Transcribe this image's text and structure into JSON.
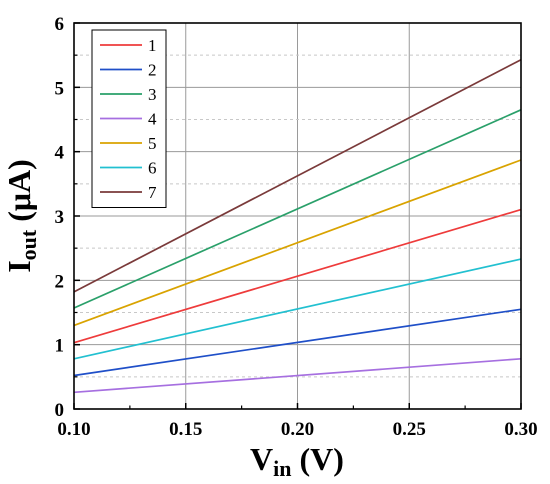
{
  "chart_data": {
    "type": "line",
    "title": "",
    "xlabel": {
      "main": "V",
      "sub": "in",
      "unit": " (V)"
    },
    "ylabel": {
      "main": "I",
      "sub": "out",
      "unit": " (μA)"
    },
    "xlim": [
      0.1,
      0.3
    ],
    "ylim": [
      0,
      6
    ],
    "xticks": [
      "0.10",
      "0.15",
      "0.20",
      "0.25",
      "0.30"
    ],
    "yticks": [
      "0",
      "1",
      "2",
      "3",
      "4",
      "5",
      "6"
    ],
    "grid": true,
    "legend_position": "top-left",
    "series": [
      {
        "name": "1",
        "color": "#ee3b3b",
        "points": [
          [
            0.1,
            1.03
          ],
          [
            0.3,
            3.1
          ]
        ]
      },
      {
        "name": "2",
        "color": "#1f4fc8",
        "points": [
          [
            0.1,
            0.52
          ],
          [
            0.3,
            1.55
          ]
        ]
      },
      {
        "name": "3",
        "color": "#2aa06a",
        "points": [
          [
            0.1,
            1.57
          ],
          [
            0.3,
            4.65
          ]
        ]
      },
      {
        "name": "4",
        "color": "#a66fe0",
        "points": [
          [
            0.1,
            0.26
          ],
          [
            0.3,
            0.78
          ]
        ]
      },
      {
        "name": "5",
        "color": "#d9a300",
        "points": [
          [
            0.1,
            1.3
          ],
          [
            0.3,
            3.87
          ]
        ]
      },
      {
        "name": "6",
        "color": "#22c0d0",
        "points": [
          [
            0.1,
            0.78
          ],
          [
            0.3,
            2.33
          ]
        ]
      },
      {
        "name": "7",
        "color": "#7a3a3a",
        "points": [
          [
            0.1,
            1.82
          ],
          [
            0.3,
            5.43
          ]
        ]
      }
    ]
  }
}
